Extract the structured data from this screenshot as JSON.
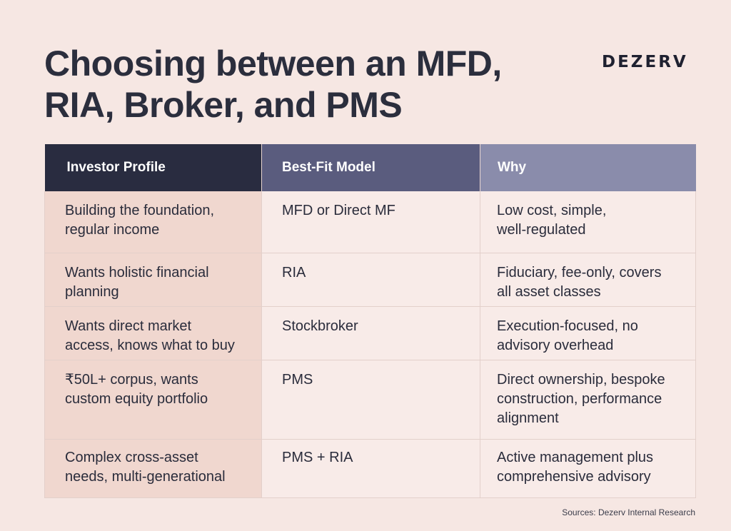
{
  "title": {
    "line1": "Choosing between an MFD,",
    "line2": "RIA, Broker, and PMS"
  },
  "brand": "DEZERV",
  "table": {
    "headers": [
      "Investor Profile",
      "Best-Fit Model",
      "Why"
    ],
    "rows": [
      {
        "profile": [
          "Building the foundation,",
          "regular income"
        ],
        "model": [
          "MFD or Direct MF"
        ],
        "why": [
          "Low cost, simple,",
          "well-regulated"
        ]
      },
      {
        "profile": [
          "Wants holistic financial",
          "planning"
        ],
        "model": [
          "RIA"
        ],
        "why": [
          "Fiduciary, fee-only, covers",
          "all asset classes"
        ]
      },
      {
        "profile": [
          "Wants direct market",
          "access, knows what to buy"
        ],
        "model": [
          "Stockbroker"
        ],
        "why": [
          "Execution-focused, no",
          "advisory overhead"
        ]
      },
      {
        "profile": [
          "₹50L+ corpus, wants",
          "custom equity portfolio"
        ],
        "model": [
          "PMS"
        ],
        "why": [
          "Direct ownership, bespoke",
          "construction, performance",
          "alignment"
        ]
      },
      {
        "profile": [
          "Complex cross-asset",
          "needs, multi-generational"
        ],
        "model": [
          "PMS + RIA"
        ],
        "why": [
          "Active management plus",
          "comprehensive advisory"
        ]
      }
    ]
  },
  "source": "Sources: Dezerv Internal Research"
}
